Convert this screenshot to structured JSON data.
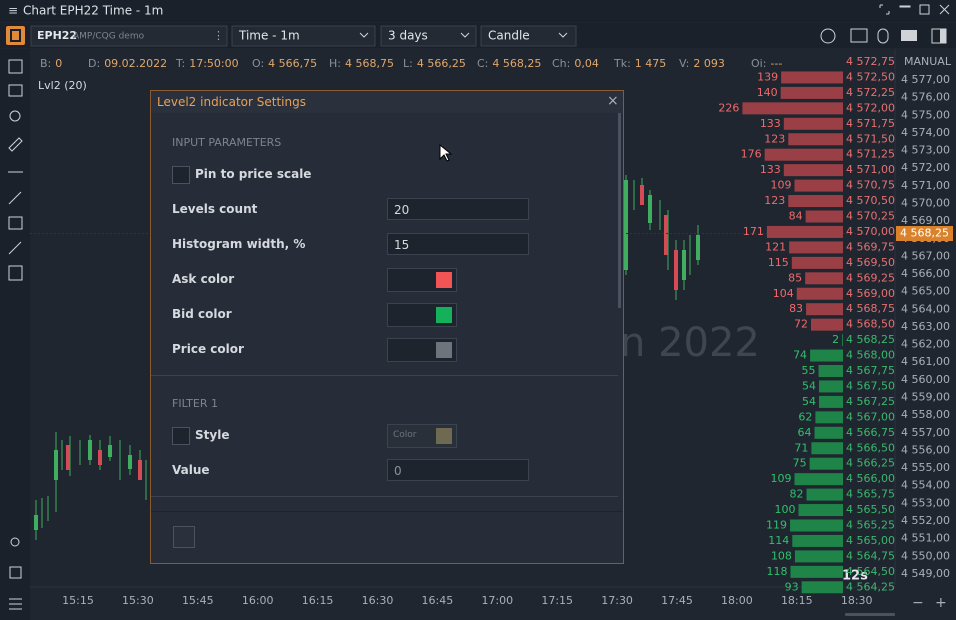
{
  "window": {
    "title": "Chart EPH22 Time - 1m"
  },
  "toolbar": {
    "symbol": "EPH22",
    "account": "AMP/CQG demo",
    "timeframe": "Time - 1m",
    "period": "3 days",
    "chart_type": "Candle"
  },
  "info_bar": [
    {
      "label": "B:",
      "value": "0"
    },
    {
      "label": "D:",
      "value": "09.02.2022"
    },
    {
      "label": "T:",
      "value": "17:50:00"
    },
    {
      "label": "O:",
      "value": "4 566,75"
    },
    {
      "label": "H:",
      "value": "4 568,75"
    },
    {
      "label": "L:",
      "value": "4 566,25"
    },
    {
      "label": "C:",
      "value": "4 568,25"
    },
    {
      "label": "Ch:",
      "value": "0,04"
    },
    {
      "label": "Tk:",
      "value": "1 475"
    },
    {
      "label": "V:",
      "value": "2 093"
    },
    {
      "label": "Oi:",
      "value": "---"
    }
  ],
  "indicator_label": "Lvl2 (20)",
  "watermark": "n 2022",
  "price_axis": {
    "mode": "MANUAL",
    "labels": [
      "4 577,00",
      "4 576,00",
      "4 575,00",
      "4 574,00",
      "4 573,00",
      "4 572,00",
      "4 571,00",
      "4 570,00",
      "4 569,00",
      "4 568,00",
      "4 567,00",
      "4 566,00",
      "4 565,00",
      "4 564,00",
      "4 563,00",
      "4 562,00",
      "4 561,00",
      "4 560,00",
      "4 559,00",
      "4 558,00",
      "4 557,00",
      "4 556,00",
      "4 555,00",
      "4 554,00",
      "4 553,00",
      "4 552,00",
      "4 551,00",
      "4 550,00",
      "4 549,00"
    ],
    "current_price": "4 568,25"
  },
  "level2": {
    "rows": [
      {
        "price": "4 572,75",
        "volume": null,
        "side": "ask"
      },
      {
        "price": "4 572,50",
        "volume": 139,
        "side": "ask"
      },
      {
        "price": "4 572,25",
        "volume": 140,
        "side": "ask"
      },
      {
        "price": "4 572,00",
        "volume": 226,
        "side": "ask"
      },
      {
        "price": "4 571,75",
        "volume": 133,
        "side": "ask"
      },
      {
        "price": "4 571,50",
        "volume": 123,
        "side": "ask"
      },
      {
        "price": "4 571,25",
        "volume": 176,
        "side": "ask"
      },
      {
        "price": "4 571,00",
        "volume": 133,
        "side": "ask"
      },
      {
        "price": "4 570,75",
        "volume": 109,
        "side": "ask"
      },
      {
        "price": "4 570,50",
        "volume": 123,
        "side": "ask"
      },
      {
        "price": "4 570,25",
        "volume": 84,
        "side": "ask"
      },
      {
        "price": "4 570,00",
        "volume": 171,
        "side": "ask"
      },
      {
        "price": "4 569,75",
        "volume": 121,
        "side": "ask"
      },
      {
        "price": "4 569,50",
        "volume": 115,
        "side": "ask"
      },
      {
        "price": "4 569,25",
        "volume": 85,
        "side": "ask"
      },
      {
        "price": "4 569,00",
        "volume": 104,
        "side": "ask"
      },
      {
        "price": "4 568,75",
        "volume": 83,
        "side": "ask"
      },
      {
        "price": "4 568,50",
        "volume": 72,
        "side": "ask"
      },
      {
        "price": "4 568,25",
        "volume": 2,
        "side": "bid"
      },
      {
        "price": "4 568,00",
        "volume": 74,
        "side": "bid"
      },
      {
        "price": "4 567,75",
        "volume": 55,
        "side": "bid"
      },
      {
        "price": "4 567,50",
        "volume": 54,
        "side": "bid"
      },
      {
        "price": "4 567,25",
        "volume": 54,
        "side": "bid"
      },
      {
        "price": "4 567,00",
        "volume": 62,
        "side": "bid"
      },
      {
        "price": "4 566,75",
        "volume": 64,
        "side": "bid"
      },
      {
        "price": "4 566,50",
        "volume": 71,
        "side": "bid"
      },
      {
        "price": "4 566,25",
        "volume": 75,
        "side": "bid"
      },
      {
        "price": "4 566,00",
        "volume": 109,
        "side": "bid"
      },
      {
        "price": "4 565,75",
        "volume": 82,
        "side": "bid"
      },
      {
        "price": "4 565,50",
        "volume": 100,
        "side": "bid"
      },
      {
        "price": "4 565,25",
        "volume": 119,
        "side": "bid"
      },
      {
        "price": "4 565,00",
        "volume": 114,
        "side": "bid"
      },
      {
        "price": "4 564,75",
        "volume": 108,
        "side": "bid"
      },
      {
        "price": "4 564,50",
        "volume": 118,
        "side": "bid"
      },
      {
        "price": "4 564,25",
        "volume": 93,
        "side": "bid"
      }
    ]
  },
  "time_axis": {
    "labels": [
      "15:15",
      "15:30",
      "15:45",
      "16:00",
      "16:15",
      "16:30",
      "16:45",
      "17:00",
      "17:15",
      "17:30",
      "17:45",
      "18:00",
      "18:15",
      "18:30"
    ],
    "countdown": "12s"
  },
  "dialog": {
    "title": "Level2 indicator Settings",
    "section1": "INPUT PARAMETERS",
    "pin_label": "Pin to price scale",
    "levels_label": "Levels count",
    "levels_value": "20",
    "hist_label": "Histogram width, %",
    "hist_value": "15",
    "ask_label": "Ask color",
    "bid_label": "Bid color",
    "price_label": "Price color",
    "section2": "FILTER 1",
    "style_label": "Style",
    "color_label": "Color",
    "value_label": "Value",
    "value_value": "0"
  }
}
